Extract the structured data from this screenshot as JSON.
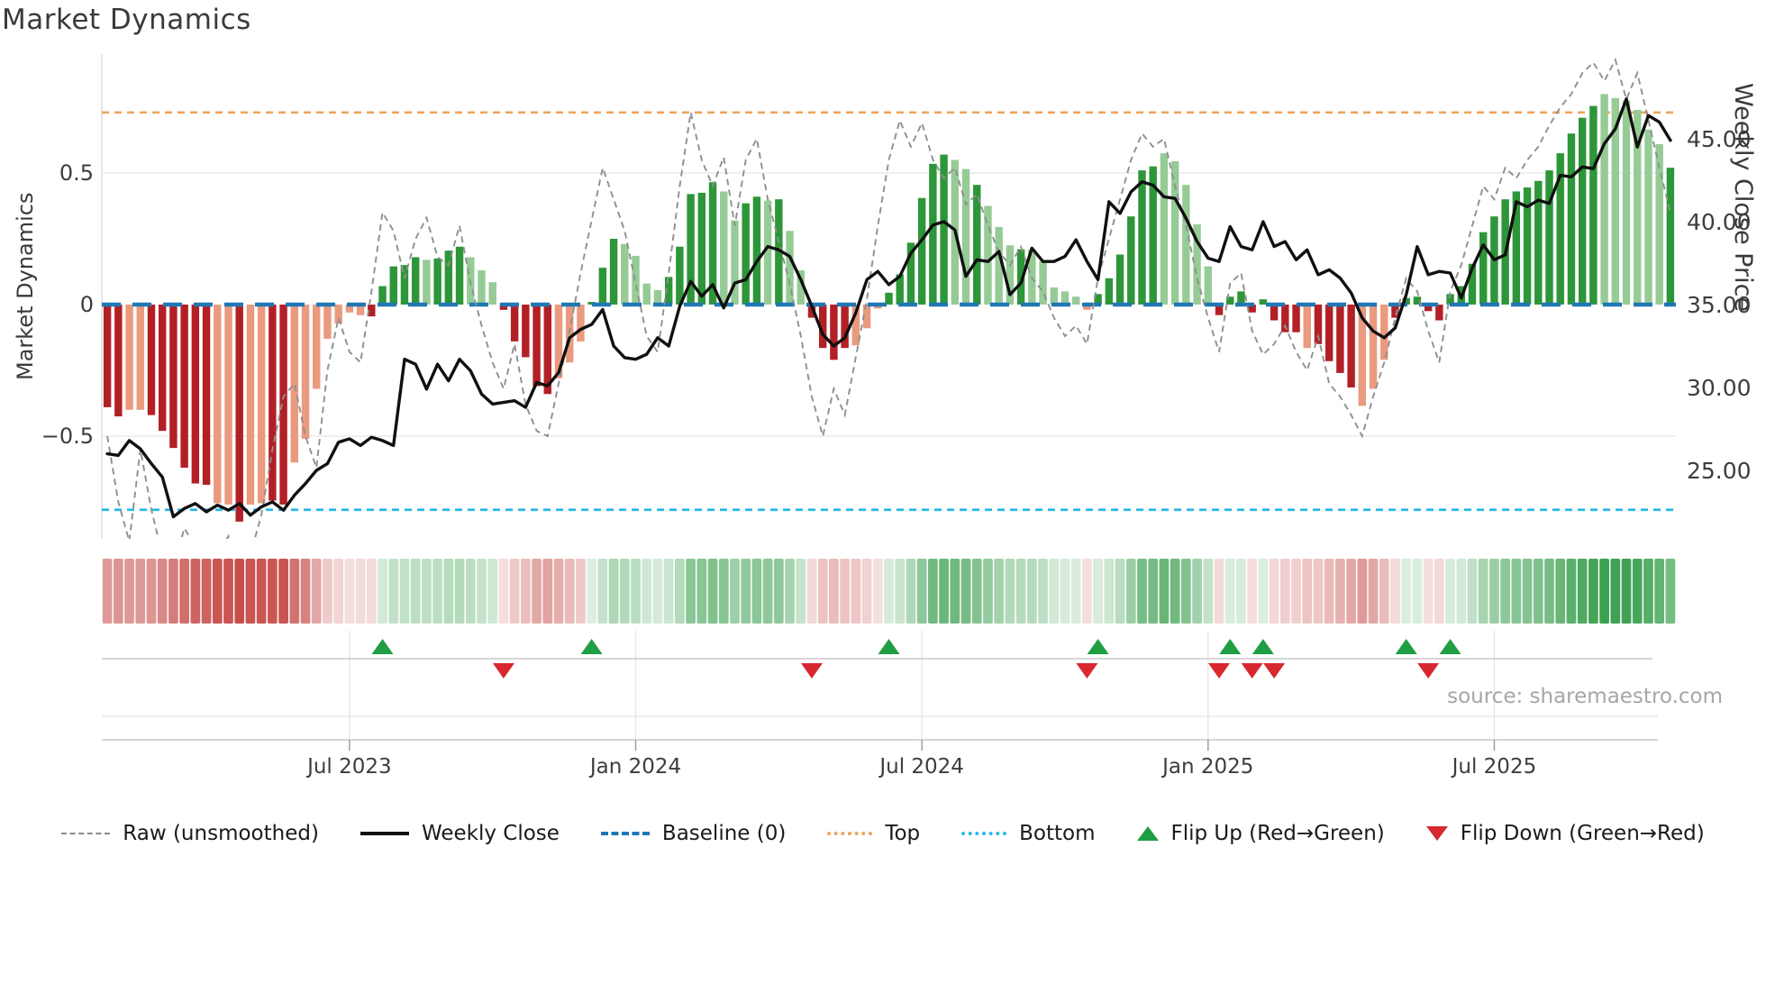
{
  "title": "Market Dynamics",
  "source_text": "source: sharemaestro.com",
  "axes": {
    "left": {
      "label": "Market Dynamics",
      "ticks": [
        {
          "value": 0.5,
          "label": "0.5"
        },
        {
          "value": 0,
          "label": "0"
        },
        {
          "value": -0.5,
          "label": "−0.5"
        }
      ]
    },
    "right": {
      "label": "Weekly Close Price",
      "ticks": [
        {
          "value": 45,
          "label": "45.00"
        },
        {
          "value": 40,
          "label": "40.00"
        },
        {
          "value": 35,
          "label": "35.00"
        },
        {
          "value": 30,
          "label": "30.00"
        },
        {
          "value": 25,
          "label": "25.00"
        }
      ]
    },
    "x": {
      "ticks": [
        {
          "index": 22,
          "label": "Jul 2023"
        },
        {
          "index": 48,
          "label": "Jan 2024"
        },
        {
          "index": 74,
          "label": "Jul 2024"
        },
        {
          "index": 100,
          "label": "Jan 2025"
        },
        {
          "index": 126,
          "label": "Jul 2025"
        }
      ]
    }
  },
  "legend": [
    {
      "label": "Raw (unsmoothed)",
      "swatch": "dashed-line",
      "color": "#8a8a8a"
    },
    {
      "label": "Weekly Close",
      "swatch": "solid-line",
      "color": "#101010"
    },
    {
      "label": "Baseline (0)",
      "swatch": "long-dash-line",
      "color": "#1f77b4"
    },
    {
      "label": "Top",
      "swatch": "dotted-line",
      "color": "#f0a35e"
    },
    {
      "label": "Bottom",
      "swatch": "dotted-line",
      "color": "#29b9ea"
    },
    {
      "label": "Flip Up (Red→Green)",
      "swatch": "triangle-up",
      "color": "#1f9e43"
    },
    {
      "label": "Flip Down (Green→Red)",
      "swatch": "triangle-down",
      "color": "#d7282f"
    }
  ],
  "colors": {
    "bar_green_strong": "#2d9638",
    "bar_green_light": "#96cb96",
    "bar_red_strong": "#b22026",
    "bar_red_light": "#ea9a7e",
    "baseline_blue": "#1f77b4",
    "top_orange": "#f0a35e",
    "bottom_cyan": "#26b9e8",
    "close_black": "#101010",
    "raw_gray": "#8f8f8f",
    "flip_up_green": "#1f9e43",
    "flip_down_red": "#d7282f",
    "grid_gray": "#e7eaef",
    "tick_text": "#3d3d3d"
  },
  "chart_data": {
    "type": "bar",
    "subtype": "combo-bar-line-oscillator",
    "frequency": "weekly",
    "start_date": "2023-02-03",
    "title": "Market Dynamics",
    "xlabel": "",
    "ylabel_left": "Market Dynamics",
    "ylabel_right": "Weekly Close Price",
    "left_ylim": [
      -0.9,
      0.95
    ],
    "right_ylim": [
      20.8,
      50.1
    ],
    "baseline": 0,
    "top_threshold": 0.73,
    "bottom_threshold": -0.78,
    "x_tick_indices": [
      22,
      48,
      74,
      100,
      126
    ],
    "x_tick_labels": [
      "Jul 2023",
      "Jan 2024",
      "Jul 2024",
      "Jan 2025",
      "Jul 2025"
    ],
    "legend_position": "bottom",
    "grid": "horizontal-light",
    "bars": {
      "name": "Market Dynamics (smoothed)",
      "values": [
        -0.39,
        -0.425,
        -0.4,
        -0.4,
        -0.42,
        -0.48,
        -0.545,
        -0.62,
        -0.68,
        -0.685,
        -0.755,
        -0.76,
        -0.825,
        -0.76,
        -0.755,
        -0.745,
        -0.76,
        -0.6,
        -0.51,
        -0.32,
        -0.13,
        -0.072,
        -0.03,
        -0.04,
        -0.045,
        0.07,
        0.145,
        0.15,
        0.18,
        0.17,
        0.175,
        0.205,
        0.22,
        0.18,
        0.13,
        0.085,
        -0.02,
        -0.14,
        -0.2,
        -0.31,
        -0.34,
        -0.28,
        -0.22,
        -0.14,
        0.01,
        0.14,
        0.25,
        0.23,
        0.185,
        0.08,
        0.055,
        0.105,
        0.22,
        0.42,
        0.425,
        0.465,
        0.43,
        0.32,
        0.385,
        0.41,
        0.395,
        0.4,
        0.28,
        0.13,
        -0.05,
        -0.165,
        -0.21,
        -0.165,
        -0.155,
        -0.09,
        -0.015,
        0.045,
        0.115,
        0.235,
        0.405,
        0.535,
        0.57,
        0.55,
        0.515,
        0.455,
        0.375,
        0.295,
        0.225,
        0.21,
        0.21,
        0.165,
        0.065,
        0.05,
        0.03,
        -0.02,
        0.04,
        0.1,
        0.19,
        0.335,
        0.51,
        0.525,
        0.575,
        0.545,
        0.455,
        0.305,
        0.145,
        -0.04,
        0.03,
        0.05,
        -0.03,
        0.02,
        -0.06,
        -0.105,
        -0.105,
        -0.165,
        -0.15,
        -0.215,
        -0.26,
        -0.315,
        -0.385,
        -0.32,
        -0.21,
        -0.05,
        0.025,
        0.03,
        -0.025,
        -0.06,
        0.04,
        0.07,
        0.155,
        0.275,
        0.335,
        0.4,
        0.43,
        0.445,
        0.47,
        0.51,
        0.575,
        0.65,
        0.71,
        0.755,
        0.8,
        0.785,
        0.775,
        0.74,
        0.665,
        0.61,
        0.52
      ],
      "shades": "ddllddddddlldllddllllllldddddldddllldddddllldddllllddddd l lddldllddddlllddddddlldllldllllllｄddddddlllllddddddddlddddllldddddddddddddddddddllllll"
    },
    "raw_line": {
      "name": "Raw (unsmoothed)",
      "values": [
        -0.5,
        -0.75,
        -0.9,
        -0.55,
        -0.78,
        -0.95,
        -1.0,
        -0.85,
        -0.92,
        -1.02,
        -0.95,
        -0.88,
        -1.05,
        -0.95,
        -0.8,
        -0.55,
        -0.35,
        -0.3,
        -0.5,
        -0.62,
        -0.25,
        -0.05,
        -0.18,
        -0.22,
        0.05,
        0.35,
        0.28,
        0.1,
        0.25,
        0.33,
        0.18,
        0.15,
        0.3,
        0.08,
        -0.08,
        -0.22,
        -0.32,
        -0.15,
        -0.38,
        -0.48,
        -0.5,
        -0.3,
        -0.1,
        0.12,
        0.32,
        0.52,
        0.4,
        0.28,
        0.08,
        -0.12,
        -0.18,
        0.12,
        0.45,
        0.73,
        0.55,
        0.45,
        0.56,
        0.3,
        0.55,
        0.63,
        0.4,
        0.24,
        0.08,
        -0.12,
        -0.35,
        -0.5,
        -0.32,
        -0.42,
        -0.2,
        0.02,
        0.3,
        0.55,
        0.7,
        0.6,
        0.69,
        0.55,
        0.48,
        0.52,
        0.38,
        0.42,
        0.3,
        0.2,
        0.15,
        0.22,
        0.1,
        0.05,
        -0.05,
        -0.12,
        -0.08,
        -0.15,
        0.1,
        0.25,
        0.4,
        0.55,
        0.65,
        0.6,
        0.63,
        0.45,
        0.3,
        0.1,
        -0.05,
        -0.18,
        0.08,
        0.12,
        -0.1,
        -0.19,
        -0.15,
        -0.08,
        -0.18,
        -0.25,
        -0.12,
        -0.3,
        -0.35,
        -0.42,
        -0.5,
        -0.35,
        -0.22,
        -0.05,
        0.1,
        0.05,
        -0.1,
        -0.22,
        0.05,
        0.15,
        0.3,
        0.45,
        0.4,
        0.52,
        0.48,
        0.55,
        0.6,
        0.68,
        0.75,
        0.8,
        0.88,
        0.92,
        0.85,
        0.93,
        0.78,
        0.88,
        0.7,
        0.52,
        0.35
      ]
    },
    "close_line": {
      "name": "Weekly Close",
      "axis": "right",
      "values": [
        26.0,
        25.9,
        26.8,
        26.3,
        25.4,
        24.6,
        22.2,
        22.7,
        23.0,
        22.5,
        22.9,
        22.6,
        23.0,
        22.3,
        22.8,
        23.1,
        22.6,
        23.5,
        24.2,
        25.0,
        25.4,
        26.7,
        26.9,
        26.5,
        27.0,
        26.8,
        26.5,
        31.7,
        31.4,
        29.9,
        31.4,
        30.4,
        31.7,
        31.0,
        29.6,
        29.0,
        29.1,
        29.2,
        28.8,
        30.3,
        30.1,
        30.9,
        33.0,
        33.5,
        33.8,
        34.7,
        32.5,
        31.8,
        31.7,
        32.0,
        33.0,
        32.5,
        34.9,
        36.4,
        35.5,
        36.2,
        34.8,
        36.3,
        36.5,
        37.6,
        38.5,
        38.3,
        37.9,
        36.5,
        34.9,
        33.2,
        32.5,
        33.0,
        34.5,
        36.5,
        37.0,
        36.2,
        36.7,
        38.1,
        38.9,
        39.8,
        40.0,
        39.5,
        36.7,
        37.7,
        37.6,
        38.2,
        35.6,
        36.3,
        38.4,
        37.6,
        37.6,
        37.9,
        38.9,
        37.6,
        36.5,
        41.2,
        40.5,
        41.8,
        42.4,
        42.2,
        41.5,
        41.4,
        40.2,
        38.8,
        37.8,
        37.6,
        39.7,
        38.5,
        38.3,
        40.0,
        38.5,
        38.8,
        37.7,
        38.3,
        36.8,
        37.1,
        36.6,
        35.7,
        34.2,
        33.4,
        33.0,
        33.6,
        35.6,
        38.5,
        36.8,
        37.0,
        36.9,
        35.4,
        37.2,
        38.6,
        37.7,
        38.0,
        41.2,
        40.9,
        41.3,
        41.1,
        42.8,
        42.7,
        43.3,
        43.2,
        44.7,
        45.6,
        47.4,
        44.5,
        46.4,
        46.0,
        44.9
      ]
    },
    "flip_up_indices": [
      25,
      44,
      71,
      90,
      102,
      105,
      118,
      122
    ],
    "flip_down_indices": [
      36,
      64,
      89,
      101,
      104,
      106,
      120
    ],
    "heatmap_strip": true
  }
}
